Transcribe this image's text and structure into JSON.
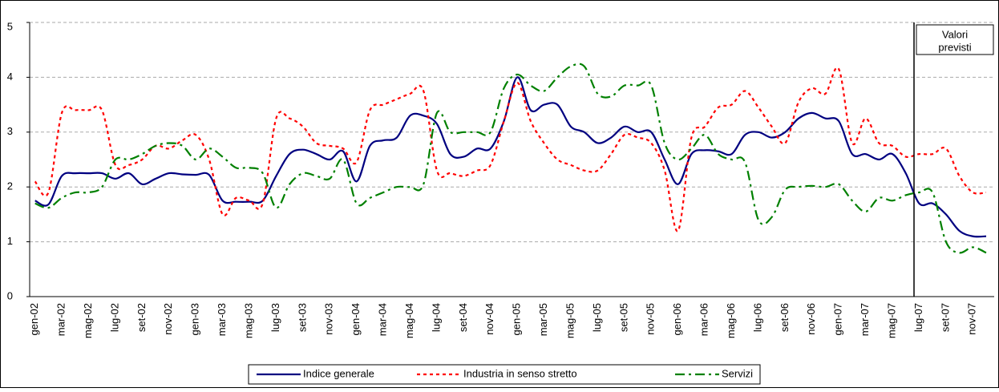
{
  "chart_data": {
    "type": "line",
    "categories": [
      "gen-02",
      null,
      "mar-02",
      null,
      "mag-02",
      null,
      "lug-02",
      null,
      "set-02",
      null,
      "nov-02",
      null,
      "gen-03",
      null,
      "mar-03",
      null,
      "mag-03",
      null,
      "lug-03",
      null,
      "set-03",
      null,
      "nov-03",
      null,
      "gen-04",
      null,
      "mar-04",
      null,
      "mag-04",
      null,
      "lug-04",
      null,
      "set-04",
      null,
      "nov-04",
      null,
      "gen-05",
      null,
      "mar-05",
      null,
      "mag-05",
      null,
      "lug-05",
      null,
      "set-05",
      null,
      "nov-05",
      null,
      "gen-06",
      null,
      "mar-06",
      null,
      "mag-06",
      null,
      "lug-06",
      null,
      "set-06",
      null,
      "nov-06",
      null,
      "gen-07",
      null,
      "mar-07",
      null,
      "mag-07",
      null,
      "lug-07",
      null,
      "set-07",
      null,
      "nov-07",
      null
    ],
    "series": [
      {
        "name": "Indice generale",
        "color": "#000080",
        "dash": "solid",
        "values": [
          1.75,
          1.68,
          2.2,
          2.25,
          2.25,
          2.25,
          2.15,
          2.25,
          2.05,
          2.15,
          2.25,
          2.23,
          2.22,
          2.22,
          1.75,
          1.73,
          1.73,
          1.75,
          2.2,
          2.6,
          2.68,
          2.6,
          2.5,
          2.65,
          2.1,
          2.75,
          2.85,
          2.9,
          3.3,
          3.3,
          3.15,
          2.6,
          2.55,
          2.7,
          2.7,
          3.2,
          4.0,
          3.4,
          3.5,
          3.5,
          3.1,
          3.0,
          2.8,
          2.9,
          3.1,
          3.0,
          3.0,
          2.5,
          2.05,
          2.6,
          2.67,
          2.65,
          2.6,
          2.95,
          3.0,
          2.9,
          3.0,
          3.25,
          3.35,
          3.25,
          3.2,
          2.6,
          2.6,
          2.5,
          2.6,
          2.25,
          1.7,
          1.7,
          1.5,
          1.2,
          1.1,
          1.1
        ]
      },
      {
        "name": "Industria in senso stretto",
        "color": "#ff0000",
        "dash": "dotted",
        "values": [
          2.1,
          1.9,
          3.35,
          3.4,
          3.4,
          3.4,
          2.4,
          2.4,
          2.5,
          2.75,
          2.7,
          2.85,
          2.95,
          2.5,
          1.5,
          1.8,
          1.75,
          1.7,
          3.25,
          3.25,
          3.1,
          2.8,
          2.75,
          2.7,
          2.45,
          3.4,
          3.5,
          3.6,
          3.7,
          3.75,
          2.3,
          2.25,
          2.2,
          2.3,
          2.4,
          3.2,
          3.9,
          3.2,
          2.8,
          2.5,
          2.4,
          2.3,
          2.3,
          2.6,
          2.95,
          2.9,
          2.8,
          2.3,
          1.2,
          2.9,
          3.1,
          3.45,
          3.5,
          3.75,
          3.45,
          3.1,
          2.8,
          3.55,
          3.8,
          3.7,
          4.15,
          2.8,
          3.25,
          2.8,
          2.75,
          2.55,
          2.6,
          2.6,
          2.7,
          2.2,
          1.9,
          1.9
        ]
      },
      {
        "name": "Servizi",
        "color": "#008000",
        "dash": "dashdot",
        "values": [
          1.7,
          1.62,
          1.8,
          1.9,
          1.9,
          2.0,
          2.5,
          2.5,
          2.6,
          2.75,
          2.8,
          2.75,
          2.5,
          2.7,
          2.55,
          2.35,
          2.35,
          2.25,
          1.62,
          2.05,
          2.25,
          2.2,
          2.15,
          2.5,
          1.7,
          1.8,
          1.9,
          2.0,
          2.0,
          2.05,
          3.35,
          3.0,
          3.0,
          3.0,
          3.0,
          3.8,
          4.05,
          3.85,
          3.75,
          4.0,
          4.2,
          4.2,
          3.7,
          3.65,
          3.85,
          3.85,
          3.85,
          2.8,
          2.5,
          2.7,
          2.95,
          2.6,
          2.5,
          2.45,
          1.4,
          1.45,
          1.95,
          2.0,
          2.02,
          2.0,
          2.05,
          1.75,
          1.55,
          1.8,
          1.75,
          1.85,
          1.9,
          1.9,
          1.0,
          0.8,
          0.9,
          0.8
        ]
      }
    ],
    "ylim": [
      0,
      5
    ],
    "yticks": [
      0,
      1,
      2,
      3,
      4,
      5
    ],
    "grid": true,
    "annotation": [
      "Valori",
      "previsti"
    ],
    "legend": "bottom"
  }
}
